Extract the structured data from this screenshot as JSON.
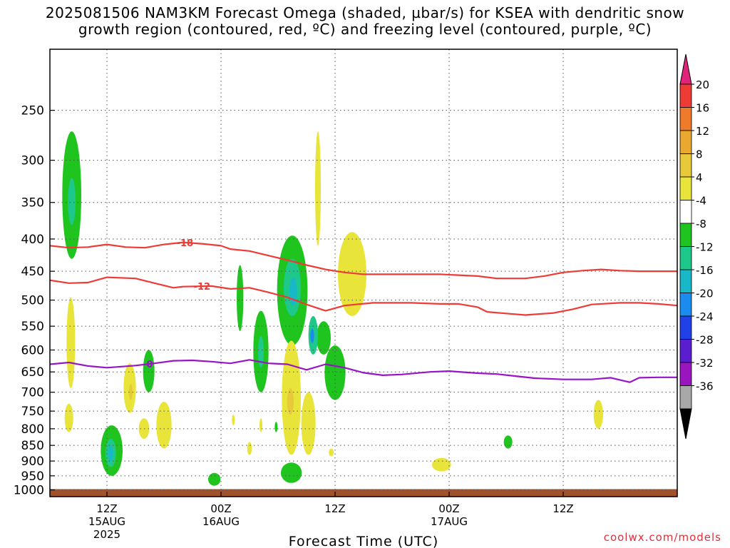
{
  "title_line1": "2025081506 NAM3KM Forecast Omega (shaded, µbar/s) for KSEA with dendritic snow",
  "title_line2": "growth region (contoured, red, ºC) and freezing level (contoured, purple, ºC)",
  "credit": "coolwx.com/models",
  "chart_data": {
    "type": "contour",
    "xlabel": "Forecast Time (UTC)",
    "ylabel": "",
    "x_unit": "hours since 2025-08-15 06Z",
    "xlim": [
      0,
      66
    ],
    "ylim_pressure_hPa": [
      1025,
      200
    ],
    "y_scale": "log",
    "grid": true,
    "xticks": [
      {
        "hour": 6,
        "label": "12Z",
        "sublabel": "15AUG",
        "sublabel2": "2025"
      },
      {
        "hour": 18,
        "label": "00Z",
        "sublabel": "16AUG",
        "sublabel2": ""
      },
      {
        "hour": 30,
        "label": "12Z",
        "sublabel": "",
        "sublabel2": ""
      },
      {
        "hour": 42,
        "label": "00Z",
        "sublabel": "17AUG",
        "sublabel2": ""
      },
      {
        "hour": 54,
        "label": "12Z",
        "sublabel": "",
        "sublabel2": ""
      }
    ],
    "yticks": [
      250,
      300,
      350,
      400,
      450,
      500,
      550,
      600,
      650,
      700,
      750,
      800,
      850,
      900,
      950,
      1000
    ],
    "colorbar": {
      "levels": [
        20,
        16,
        12,
        8,
        4,
        -4,
        -8,
        -12,
        -16,
        -20,
        -24,
        -28,
        -32,
        -36
      ],
      "colors": [
        "#e0245c",
        "#ee3b36",
        "#ee7a2a",
        "#e8a92e",
        "#e8c93a",
        "#e8e43a",
        "#ffffff",
        "#1fc41f",
        "#1ec88a",
        "#18b8c8",
        "#1a8cf0",
        "#2040e8",
        "#5a1ed0",
        "#9a14c0",
        "#a8a8a8",
        "#000000"
      ],
      "top_arrow_color": "#e0247a",
      "bottom_arrow_color": "#000000"
    },
    "series": [
      {
        "name": "-18",
        "color": "#ee3b36",
        "points": [
          [
            0,
            410
          ],
          [
            2,
            413
          ],
          [
            4,
            412
          ],
          [
            6,
            408
          ],
          [
            8,
            412
          ],
          [
            10,
            413
          ],
          [
            12,
            408
          ],
          [
            14,
            405
          ],
          [
            16,
            407
          ],
          [
            18,
            410
          ],
          [
            19,
            415
          ],
          [
            21,
            418
          ],
          [
            23,
            425
          ],
          [
            25,
            432
          ],
          [
            27,
            440
          ],
          [
            29,
            447
          ],
          [
            31,
            452
          ],
          [
            33,
            455
          ],
          [
            37,
            455
          ],
          [
            41,
            455
          ],
          [
            45,
            458
          ],
          [
            47,
            462
          ],
          [
            50,
            462
          ],
          [
            52,
            458
          ],
          [
            54,
            452
          ],
          [
            56,
            449
          ],
          [
            58,
            447
          ],
          [
            60,
            449
          ],
          [
            62,
            450
          ],
          [
            64,
            450
          ],
          [
            66,
            450
          ]
        ],
        "label_at_hour": 14.2
      },
      {
        "name": "-12",
        "color": "#ee3b36",
        "points": [
          [
            0,
            465
          ],
          [
            2,
            470
          ],
          [
            4,
            469
          ],
          [
            6,
            460
          ],
          [
            9,
            462
          ],
          [
            11,
            470
          ],
          [
            13,
            478
          ],
          [
            14,
            476
          ],
          [
            17,
            475
          ],
          [
            19,
            480
          ],
          [
            21,
            478
          ],
          [
            23,
            486
          ],
          [
            25,
            495
          ],
          [
            27,
            508
          ],
          [
            29,
            520
          ],
          [
            31,
            510
          ],
          [
            34,
            505
          ],
          [
            38,
            505
          ],
          [
            41,
            507
          ],
          [
            43,
            507
          ],
          [
            45,
            513
          ],
          [
            46,
            522
          ],
          [
            48,
            525
          ],
          [
            50,
            528
          ],
          [
            53,
            524
          ],
          [
            55,
            517
          ],
          [
            57,
            508
          ],
          [
            60,
            505
          ],
          [
            62,
            505
          ],
          [
            64,
            507
          ],
          [
            66,
            510
          ]
        ],
        "label_at_hour": 16
      },
      {
        "name": "0",
        "color": "#9914c4",
        "points": [
          [
            0,
            632
          ],
          [
            2,
            628
          ],
          [
            4,
            636
          ],
          [
            6,
            640
          ],
          [
            9,
            635
          ],
          [
            11,
            630
          ],
          [
            13,
            624
          ],
          [
            15,
            623
          ],
          [
            17,
            626
          ],
          [
            19,
            630
          ],
          [
            21,
            622
          ],
          [
            23,
            630
          ],
          [
            25,
            632
          ],
          [
            27,
            645
          ],
          [
            29,
            632
          ],
          [
            31,
            640
          ],
          [
            33,
            652
          ],
          [
            35,
            658
          ],
          [
            37,
            656
          ],
          [
            40,
            650
          ],
          [
            42,
            648
          ],
          [
            45,
            653
          ],
          [
            47,
            655
          ],
          [
            49,
            660
          ],
          [
            51,
            665
          ],
          [
            54,
            668
          ],
          [
            57,
            668
          ],
          [
            59,
            664
          ],
          [
            61,
            675
          ],
          [
            62,
            664
          ],
          [
            64,
            663
          ],
          [
            66,
            663
          ]
        ],
        "label_at_hour": 10.5
      }
    ],
    "omega_regions": [
      {
        "color": "#1fc41f",
        "cx": 2.3,
        "p_top": 270,
        "p_bot": 430,
        "w": 2.0
      },
      {
        "color": "#1ec88a",
        "cx": 2.3,
        "p_top": 320,
        "p_bot": 380,
        "w": 0.8
      },
      {
        "color": "#1fc41f",
        "cx": 20.0,
        "p_top": 440,
        "p_bot": 560,
        "w": 0.7
      },
      {
        "color": "#1fc41f",
        "cx": 22.2,
        "p_top": 520,
        "p_bot": 700,
        "w": 1.6
      },
      {
        "color": "#1ec88a",
        "cx": 22.2,
        "p_top": 570,
        "p_bot": 640,
        "w": 0.6
      },
      {
        "color": "#1fc41f",
        "cx": 25.5,
        "p_top": 395,
        "p_bot": 590,
        "w": 3.2
      },
      {
        "color": "#1ec88a",
        "cx": 25.5,
        "p_top": 430,
        "p_bot": 530,
        "w": 1.8
      },
      {
        "color": "#18b8c8",
        "cx": 25.6,
        "p_top": 460,
        "p_bot": 510,
        "w": 0.8
      },
      {
        "color": "#1fc41f",
        "cx": 28.8,
        "p_top": 540,
        "p_bot": 610,
        "w": 1.5
      },
      {
        "color": "#1fc41f",
        "cx": 30.0,
        "p_top": 590,
        "p_bot": 720,
        "w": 2.2
      },
      {
        "color": "#1ec88a",
        "cx": 27.7,
        "p_top": 530,
        "p_bot": 610,
        "w": 1.0
      },
      {
        "color": "#1a8cf0",
        "cx": 27.6,
        "p_top": 555,
        "p_bot": 585,
        "w": 0.4
      },
      {
        "color": "#1fc41f",
        "cx": 10.4,
        "p_top": 600,
        "p_bot": 700,
        "w": 1.2
      },
      {
        "color": "#1fc41f",
        "cx": 6.5,
        "p_top": 790,
        "p_bot": 950,
        "w": 2.3
      },
      {
        "color": "#1ec88a",
        "cx": 6.4,
        "p_top": 830,
        "p_bot": 920,
        "w": 1.1
      },
      {
        "color": "#18b8c8",
        "cx": 6.4,
        "p_top": 850,
        "p_bot": 900,
        "w": 0.5
      },
      {
        "color": "#1fc41f",
        "cx": 17.3,
        "p_top": 940,
        "p_bot": 985,
        "w": 1.3
      },
      {
        "color": "#1fc41f",
        "cx": 23.8,
        "p_top": 780,
        "p_bot": 810,
        "w": 0.3
      },
      {
        "color": "#1fc41f",
        "cx": 25.4,
        "p_top": 905,
        "p_bot": 975,
        "w": 2.2
      },
      {
        "color": "#1fc41f",
        "cx": 48.2,
        "p_top": 820,
        "p_bot": 860,
        "w": 0.9
      },
      {
        "color": "#e8e43a",
        "cx": 2.2,
        "p_top": 495,
        "p_bot": 690,
        "w": 0.9
      },
      {
        "color": "#e8e43a",
        "cx": 2.0,
        "p_top": 730,
        "p_bot": 810,
        "w": 0.9
      },
      {
        "color": "#e8e43a",
        "cx": 8.4,
        "p_top": 630,
        "p_bot": 755,
        "w": 1.3
      },
      {
        "color": "#e8c93a",
        "cx": 8.5,
        "p_top": 680,
        "p_bot": 720,
        "w": 0.4
      },
      {
        "color": "#e8e43a",
        "cx": 9.9,
        "p_top": 770,
        "p_bot": 830,
        "w": 1.1
      },
      {
        "color": "#e8e43a",
        "cx": 12.0,
        "p_top": 725,
        "p_bot": 860,
        "w": 1.6
      },
      {
        "color": "#e8e43a",
        "cx": 28.2,
        "p_top": 270,
        "p_bot": 410,
        "w": 0.6
      },
      {
        "color": "#e8e43a",
        "cx": 31.8,
        "p_top": 390,
        "p_bot": 530,
        "w": 3.0
      },
      {
        "color": "#e8e43a",
        "cx": 25.4,
        "p_top": 580,
        "p_bot": 880,
        "w": 2.0
      },
      {
        "color": "#e8c93a",
        "cx": 25.3,
        "p_top": 690,
        "p_bot": 760,
        "w": 0.7
      },
      {
        "color": "#e8e43a",
        "cx": 27.2,
        "p_top": 700,
        "p_bot": 880,
        "w": 1.5
      },
      {
        "color": "#e8e43a",
        "cx": 22.2,
        "p_top": 770,
        "p_bot": 810,
        "w": 0.3
      },
      {
        "color": "#e8e43a",
        "cx": 21.0,
        "p_top": 840,
        "p_bot": 880,
        "w": 0.5
      },
      {
        "color": "#e8e43a",
        "cx": 19.3,
        "p_top": 760,
        "p_bot": 790,
        "w": 0.25
      },
      {
        "color": "#e8e43a",
        "cx": 29.6,
        "p_top": 860,
        "p_bot": 885,
        "w": 0.5
      },
      {
        "color": "#e8e43a",
        "cx": 41.2,
        "p_top": 890,
        "p_bot": 935,
        "w": 2.0
      },
      {
        "color": "#e8e43a",
        "cx": 57.7,
        "p_top": 720,
        "p_bot": 800,
        "w": 1.0
      }
    ],
    "terrain": {
      "color": "#a0522d",
      "p_top": 1000
    }
  }
}
